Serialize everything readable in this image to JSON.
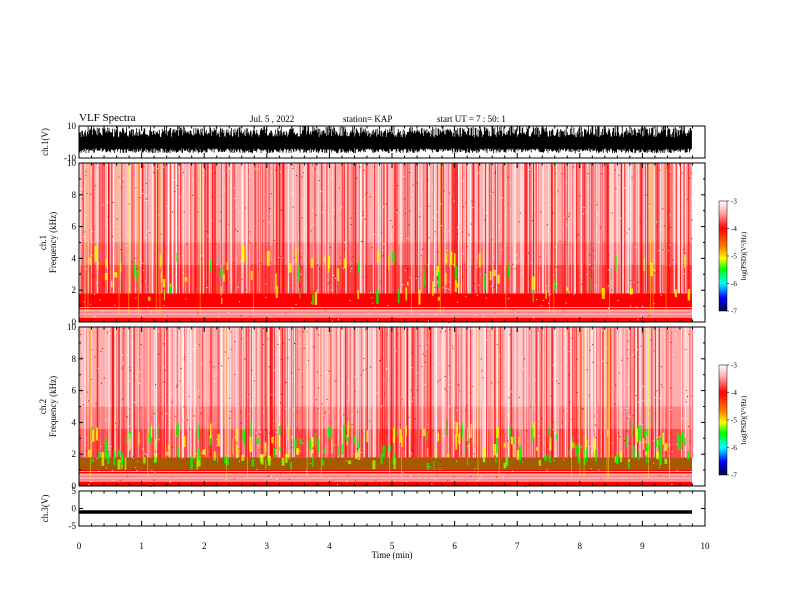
{
  "header": {
    "title": "VLF Spectra",
    "date": "Jul. 5 , 2022",
    "station": "station= KAP",
    "start": "start UT = 7 : 50: 1"
  },
  "colors": {
    "background": "#ffffff",
    "axis": "#000000",
    "spec_low": "#ff0000",
    "spec_bg": "#ffffff",
    "spec_mid": "#ffff00",
    "spec_high": "#00ff00"
  },
  "chart_data": [
    {
      "type": "line",
      "panel": "ch1-waveform",
      "ylabel": "ch.1(V)",
      "ylim": [
        -10,
        10
      ],
      "yticks": [
        "10",
        "-10"
      ],
      "x_range_min": [
        0,
        9.8
      ],
      "description_values": "saturated waveform between about -5 and 10 V"
    },
    {
      "type": "heatmap",
      "panel": "ch1-spectrogram",
      "ylabel_line1": "ch.1",
      "ylabel_line2": "Frequency (kHz)",
      "ylim": [
        0,
        10
      ],
      "yticks": [
        "0",
        "2",
        "4",
        "6",
        "8",
        "10"
      ],
      "colorbar": {
        "label": "log(PSD)(V²/Hz)",
        "range": [
          -7,
          -3
        ],
        "ticks": [
          "-3",
          "-4",
          "-5",
          "-6",
          "-7"
        ]
      }
    },
    {
      "type": "heatmap",
      "panel": "ch2-spectrogram",
      "ylabel_line1": "ch.2",
      "ylabel_line2": "Frequency (kHz)",
      "ylim": [
        0,
        10
      ],
      "yticks": [
        "0",
        "2",
        "4",
        "6",
        "8",
        "10"
      ],
      "colorbar": {
        "label": "log(PSD)(V²/Hz)",
        "range": [
          -7,
          -3
        ],
        "ticks": [
          "-3",
          "-4",
          "-5",
          "-6",
          "-7"
        ]
      }
    },
    {
      "type": "line",
      "panel": "ch3-waveform",
      "ylabel": "ch.3(V)",
      "ylim": [
        -5,
        5
      ],
      "yticks": [
        "5",
        "0",
        "-5"
      ],
      "level": -1
    }
  ],
  "xaxis": {
    "label": "Time (min)",
    "range": [
      0,
      10
    ],
    "ticks": [
      "0",
      "1",
      "2",
      "3",
      "4",
      "5",
      "6",
      "7",
      "8",
      "9",
      "10"
    ]
  }
}
